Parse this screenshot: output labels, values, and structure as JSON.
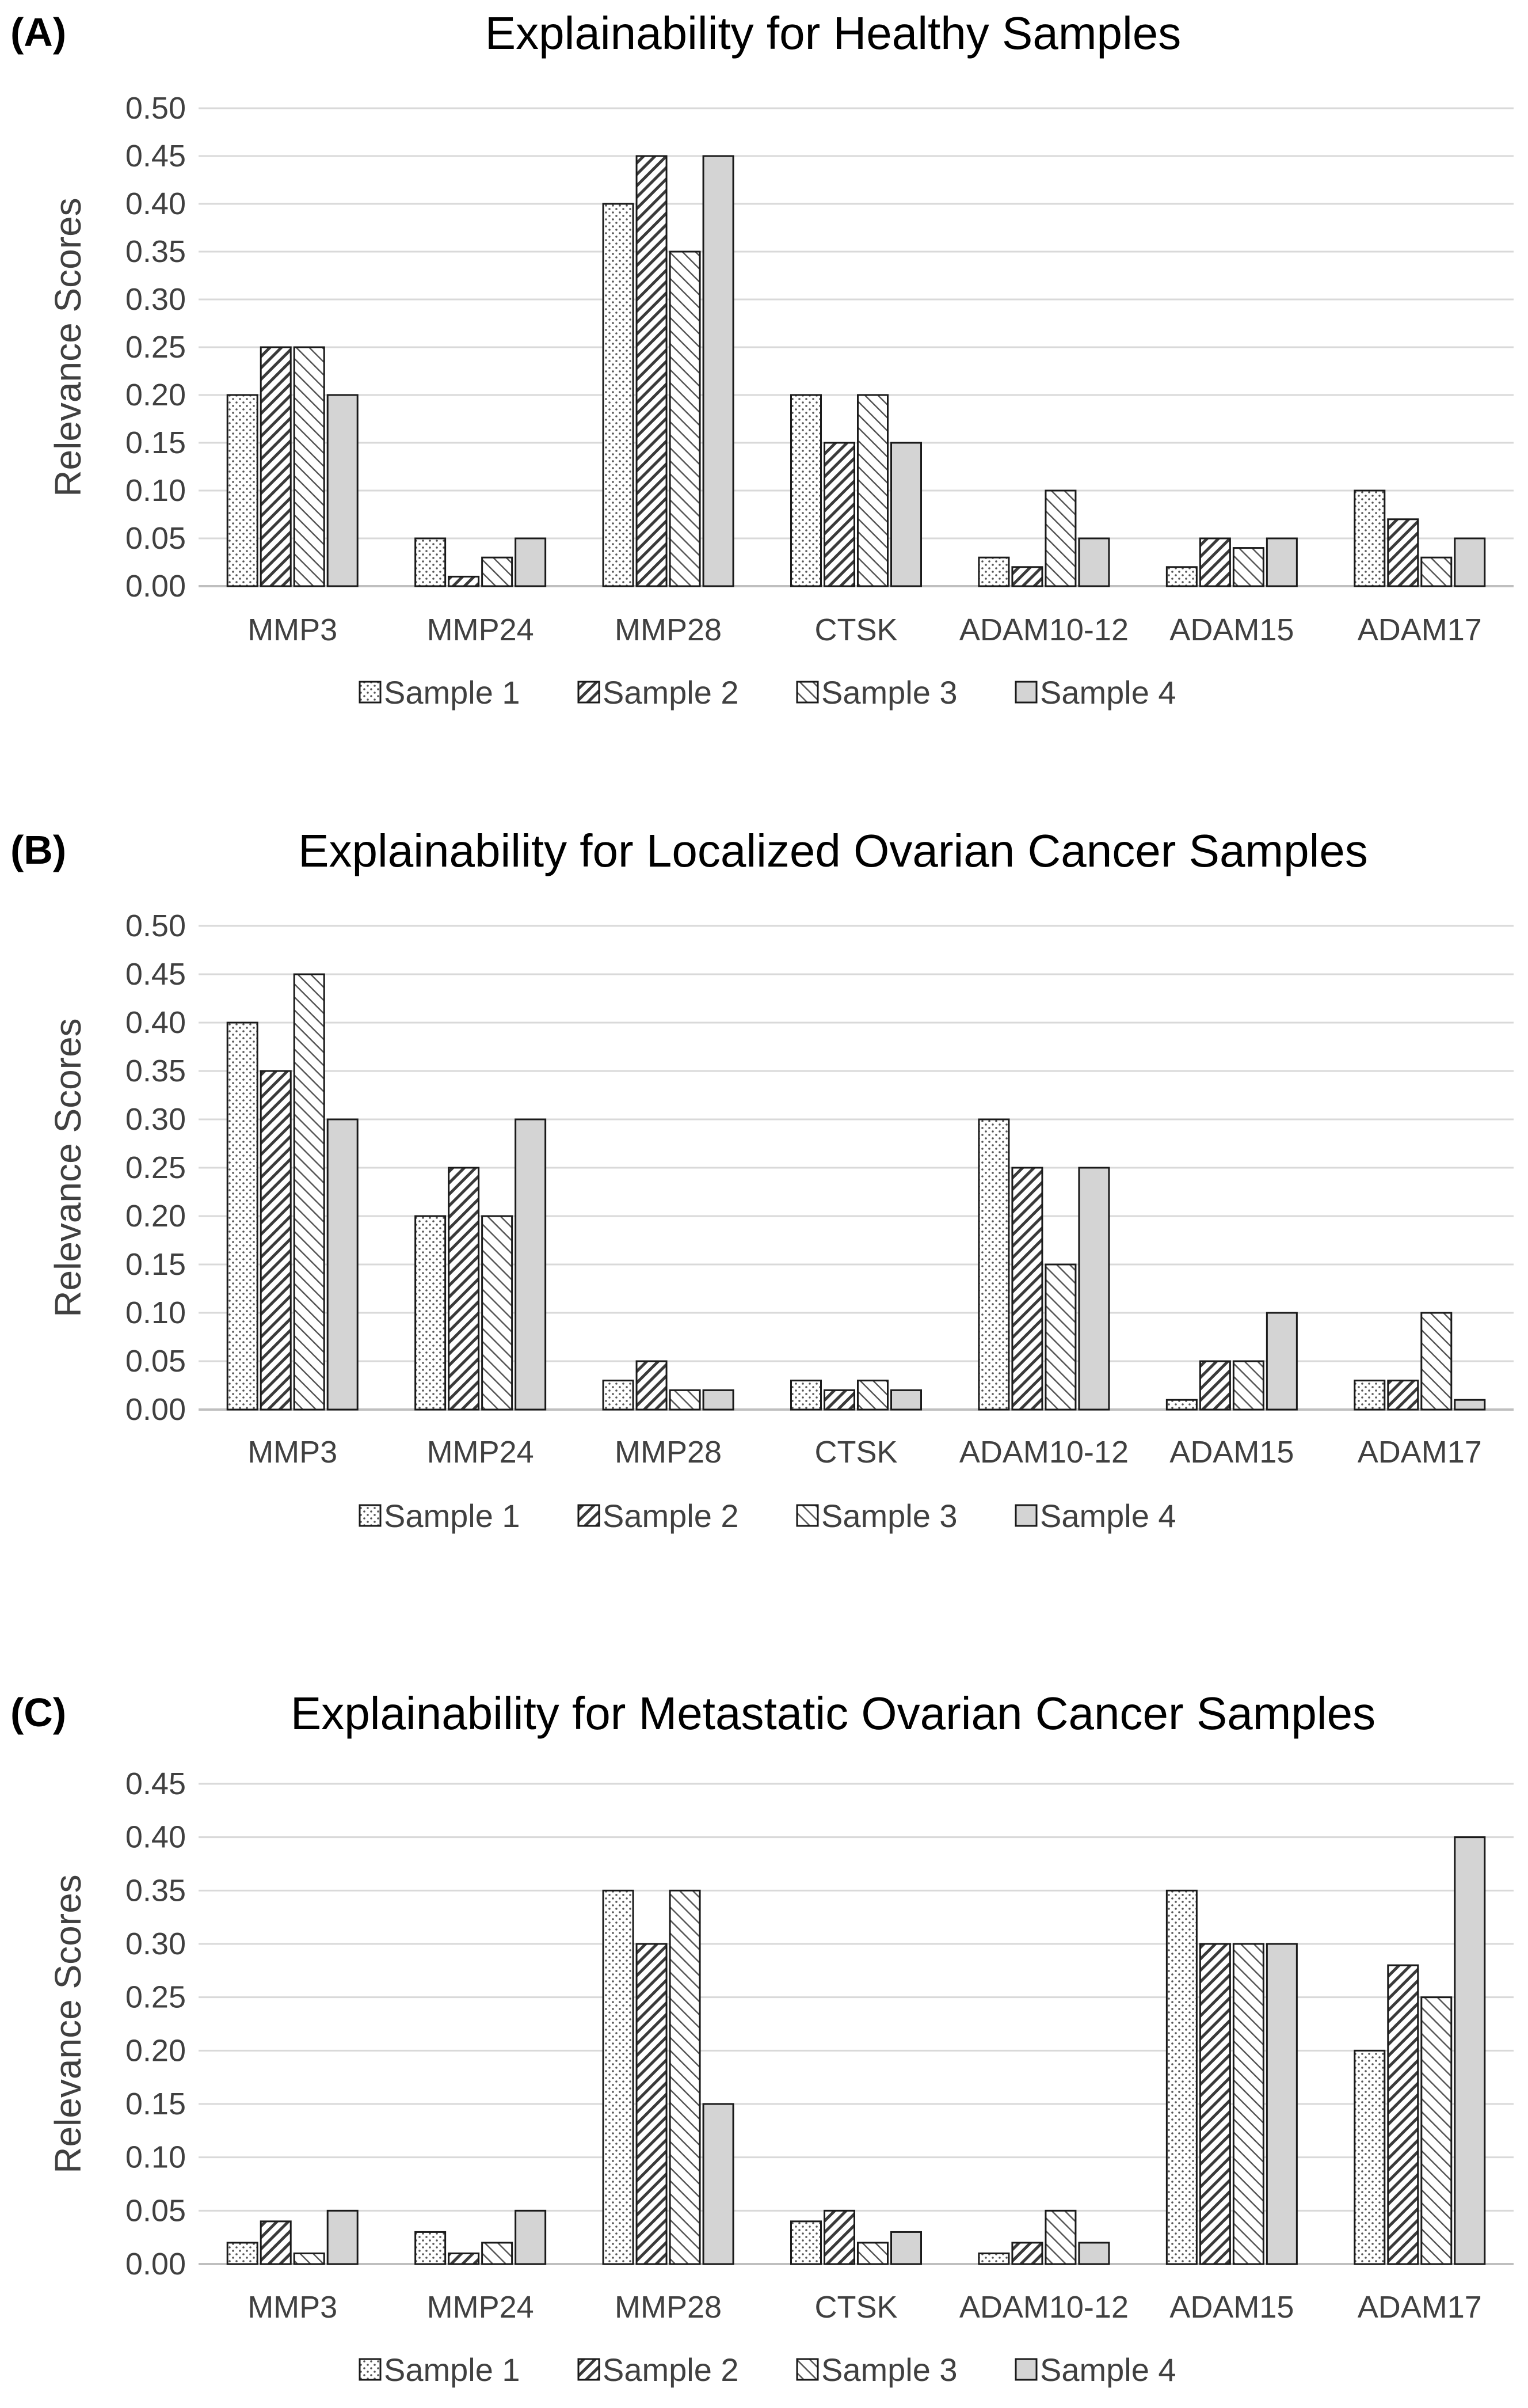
{
  "chart_data": [
    {
      "panel": "(A)",
      "type": "bar",
      "title": "Explainability for Healthy Samples",
      "xlabel": "",
      "ylabel": "Relevance Scores",
      "ylim": [
        0,
        0.5
      ],
      "yticks": [
        "0.00",
        "0.05",
        "0.10",
        "0.15",
        "0.20",
        "0.25",
        "0.30",
        "0.35",
        "0.40",
        "0.45",
        "0.50"
      ],
      "categories": [
        "MMP3",
        "MMP24",
        "MMP28",
        "CTSK",
        "ADAM10-12",
        "ADAM15",
        "ADAM17"
      ],
      "series": [
        {
          "name": "Sample 1",
          "pattern": "dots",
          "values": [
            0.2,
            0.05,
            0.4,
            0.2,
            0.03,
            0.02,
            0.1
          ]
        },
        {
          "name": "Sample 2",
          "pattern": "diagonal",
          "values": [
            0.25,
            0.01,
            0.45,
            0.15,
            0.02,
            0.05,
            0.07
          ]
        },
        {
          "name": "Sample 3",
          "pattern": "light-diagonal",
          "values": [
            0.25,
            0.03,
            0.35,
            0.2,
            0.1,
            0.04,
            0.03
          ]
        },
        {
          "name": "Sample 4",
          "pattern": "solid-gray",
          "values": [
            0.2,
            0.05,
            0.45,
            0.15,
            0.05,
            0.05,
            0.05
          ]
        }
      ],
      "grid": true,
      "legend": "bottom"
    },
    {
      "panel": "(B)",
      "type": "bar",
      "title": "Explainability for Localized Ovarian Cancer Samples",
      "xlabel": "",
      "ylabel": "Relevance Scores",
      "ylim": [
        0,
        0.5
      ],
      "yticks": [
        "0.00",
        "0.05",
        "0.10",
        "0.15",
        "0.20",
        "0.25",
        "0.30",
        "0.35",
        "0.40",
        "0.45",
        "0.50"
      ],
      "categories": [
        "MMP3",
        "MMP24",
        "MMP28",
        "CTSK",
        "ADAM10-12",
        "ADAM15",
        "ADAM17"
      ],
      "series": [
        {
          "name": "Sample 1",
          "pattern": "dots",
          "values": [
            0.4,
            0.2,
            0.03,
            0.03,
            0.3,
            0.01,
            0.03
          ]
        },
        {
          "name": "Sample 2",
          "pattern": "diagonal",
          "values": [
            0.35,
            0.25,
            0.05,
            0.02,
            0.25,
            0.05,
            0.03
          ]
        },
        {
          "name": "Sample 3",
          "pattern": "light-diagonal",
          "values": [
            0.45,
            0.2,
            0.02,
            0.03,
            0.15,
            0.05,
            0.1
          ]
        },
        {
          "name": "Sample 4",
          "pattern": "solid-gray",
          "values": [
            0.3,
            0.3,
            0.02,
            0.02,
            0.25,
            0.1,
            0.01
          ]
        }
      ],
      "grid": true,
      "legend": "bottom"
    },
    {
      "panel": "(C)",
      "type": "bar",
      "title": "Explainability for Metastatic Ovarian Cancer Samples",
      "xlabel": "",
      "ylabel": "Relevance Scores",
      "ylim": [
        0,
        0.45
      ],
      "yticks": [
        "0.00",
        "0.05",
        "0.10",
        "0.15",
        "0.20",
        "0.25",
        "0.30",
        "0.35",
        "0.40",
        "0.45"
      ],
      "categories": [
        "MMP3",
        "MMP24",
        "MMP28",
        "CTSK",
        "ADAM10-12",
        "ADAM15",
        "ADAM17"
      ],
      "series": [
        {
          "name": "Sample 1",
          "pattern": "dots",
          "values": [
            0.02,
            0.03,
            0.35,
            0.04,
            0.01,
            0.35,
            0.2
          ]
        },
        {
          "name": "Sample 2",
          "pattern": "diagonal",
          "values": [
            0.04,
            0.01,
            0.3,
            0.05,
            0.02,
            0.3,
            0.28
          ]
        },
        {
          "name": "Sample 3",
          "pattern": "light-diagonal",
          "values": [
            0.01,
            0.02,
            0.35,
            0.02,
            0.05,
            0.3,
            0.25
          ]
        },
        {
          "name": "Sample 4",
          "pattern": "solid-gray",
          "values": [
            0.05,
            0.05,
            0.15,
            0.03,
            0.02,
            0.3,
            0.4
          ]
        }
      ],
      "grid": true,
      "legend": "bottom"
    }
  ],
  "colors": {
    "bar_outline": "#1a1a1a",
    "gridline": "#d9d9d9",
    "axis_line": "#bfbfbf",
    "solid_gray": "#d4d4d4",
    "text": "#404040"
  }
}
